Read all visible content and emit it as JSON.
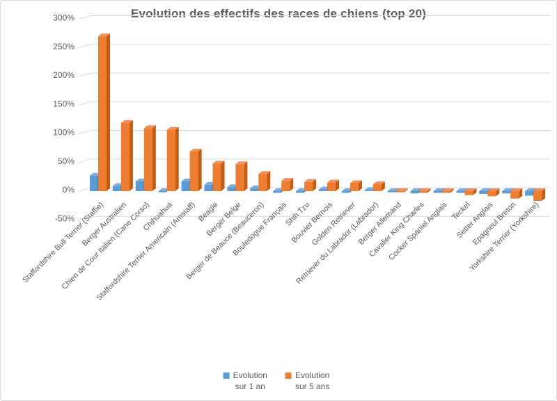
{
  "window": {
    "background": "#ffffff",
    "frame_border_color": "#d9d9d9"
  },
  "chart_data": {
    "type": "bar",
    "style": "3d-clustered-column",
    "title": "Evolution des effectifs des races de chiens (top 20)",
    "title_color": "#595959",
    "grid": true,
    "gridline_color": "#d9d9d9",
    "axis_text_color": "#595959",
    "legend_position": "bottom",
    "categories": [
      "Staffordshire Bull Terrier (Staffie)",
      "Berger Australien",
      "Chien de Cour Italien (Cane Corso)",
      "Chihuahua",
      "Staffordshire Terrier Americain (Amstaff)",
      "Beagle",
      "Berger Belge",
      "Berger de Beauce (Beauceron)",
      "Bouledogue Français",
      "Shih Tzu",
      "Bouvier Bernois",
      "Golden Retriever",
      "Retriever du Labrador (Labrador)",
      "Berger Allemand",
      "Cavalier King Charles",
      "Cocker Spaniel Anglais",
      "Teckel",
      "Setter Anglais",
      "Epagneul Breton",
      "Yorkshire Terrier (Yorkshire)"
    ],
    "series": [
      {
        "name": "Evolution sur 1 an",
        "legend_lines": [
          "Evolution",
          "sur 1 an"
        ],
        "color": "#5B9BD5",
        "color_top": "#7CACDD",
        "color_side": "#41719C",
        "values": [
          27,
          9,
          17,
          -2,
          17,
          11,
          7,
          5,
          -3,
          -3,
          3,
          -3,
          2,
          -2,
          -4,
          -3,
          -3,
          -5,
          -4,
          -8
        ]
      },
      {
        "name": "Evolution sur 5 ans",
        "legend_lines": [
          "Evolution",
          "sur 5 ans"
        ],
        "color": "#ED7D31",
        "color_top": "#F0915C",
        "color_side": "#C55A11",
        "values": [
          270,
          119,
          110,
          107,
          69,
          48,
          47,
          30,
          18,
          16,
          15,
          14,
          12,
          -2,
          -3,
          -3,
          -7,
          -9,
          -13,
          -17
        ]
      }
    ],
    "y_axis": {
      "unit": "%",
      "min": -50,
      "max": 300,
      "tick_values": [
        300,
        250,
        200,
        150,
        100,
        50,
        0,
        -50
      ],
      "tick_labels": [
        "300%",
        "250%",
        "200%",
        "150%",
        "100%",
        "50%",
        "0%",
        "-50%"
      ]
    }
  }
}
